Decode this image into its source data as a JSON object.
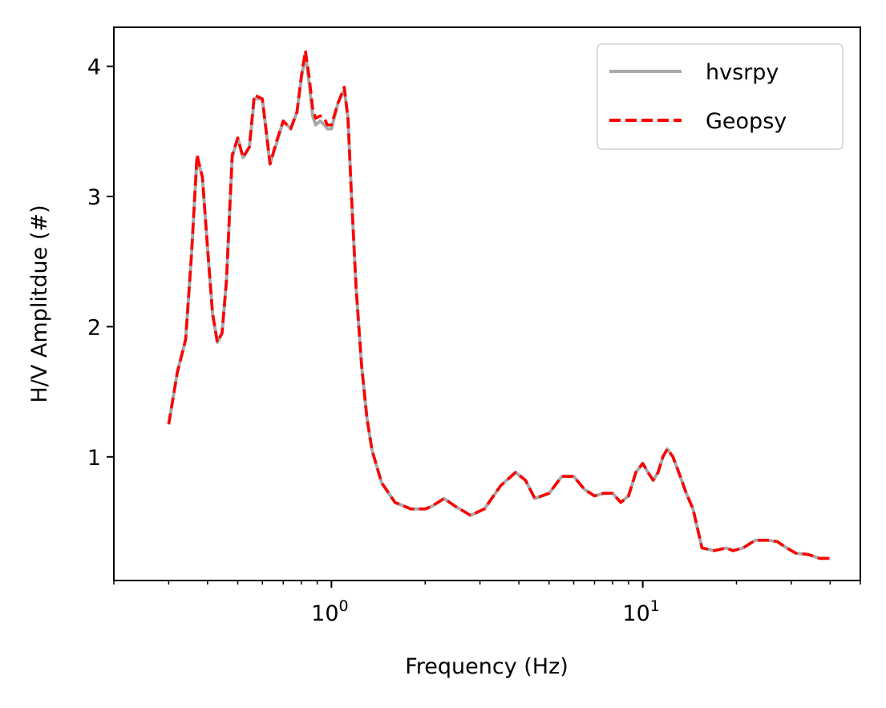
{
  "chart_data": {
    "type": "line",
    "xlabel": "Frequency (Hz)",
    "ylabel": "H/V Amplitdue (#)",
    "xscale": "log",
    "xlim": [
      0.2,
      50
    ],
    "ylim": [
      0.05,
      4.3
    ],
    "x_ticks_major": [
      {
        "value": 1,
        "base": "10",
        "exp": "0"
      },
      {
        "value": 10,
        "base": "10",
        "exp": "1"
      }
    ],
    "y_ticks": [
      {
        "value": 1,
        "label": "1"
      },
      {
        "value": 2,
        "label": "2"
      },
      {
        "value": 3,
        "label": "3"
      },
      {
        "value": 4,
        "label": "4"
      }
    ],
    "grid": false,
    "legend": "top-right",
    "series": [
      {
        "name": "hvsrpy",
        "color": "#a9a9a9",
        "style": "solid",
        "x": [
          0.3,
          0.32,
          0.34,
          0.355,
          0.37,
          0.385,
          0.4,
          0.415,
          0.43,
          0.445,
          0.46,
          0.48,
          0.5,
          0.52,
          0.545,
          0.565,
          0.6,
          0.635,
          0.665,
          0.7,
          0.74,
          0.775,
          0.8,
          0.825,
          0.85,
          0.87,
          0.89,
          0.92,
          0.95,
          0.97,
          1.0,
          1.05,
          1.1,
          1.13,
          1.16,
          1.2,
          1.25,
          1.3,
          1.35,
          1.45,
          1.6,
          1.8,
          2.0,
          2.1,
          2.3,
          2.5,
          2.8,
          3.1,
          3.5,
          3.9,
          4.2,
          4.5,
          5.0,
          5.5,
          6.0,
          6.5,
          7.0,
          7.5,
          8.0,
          8.5,
          9.0,
          9.5,
          10.0,
          10.4,
          10.8,
          11.2,
          11.6,
          12.0,
          12.5,
          13.2,
          13.8,
          14.5,
          15.5,
          17.0,
          18.5,
          19.5,
          21.0,
          23.0,
          25.0,
          27.0,
          29.0,
          31.0,
          34.0,
          37.0,
          40.0
        ],
        "values": [
          1.25,
          1.65,
          1.9,
          2.55,
          3.3,
          3.15,
          2.6,
          2.1,
          1.88,
          1.95,
          2.35,
          3.3,
          3.45,
          3.3,
          3.38,
          3.75,
          3.75,
          3.25,
          3.4,
          3.58,
          3.52,
          3.65,
          3.9,
          4.1,
          3.85,
          3.62,
          3.55,
          3.58,
          3.55,
          3.52,
          3.52,
          3.72,
          3.82,
          3.6,
          3.0,
          2.3,
          1.7,
          1.3,
          1.05,
          0.8,
          0.65,
          0.6,
          0.6,
          0.62,
          0.68,
          0.62,
          0.55,
          0.6,
          0.78,
          0.88,
          0.82,
          0.68,
          0.72,
          0.85,
          0.85,
          0.75,
          0.7,
          0.72,
          0.72,
          0.65,
          0.7,
          0.88,
          0.95,
          0.88,
          0.82,
          0.88,
          1.0,
          1.06,
          1.0,
          0.85,
          0.72,
          0.6,
          0.3,
          0.28,
          0.3,
          0.28,
          0.3,
          0.36,
          0.36,
          0.35,
          0.3,
          0.26,
          0.25,
          0.22,
          0.22
        ]
      },
      {
        "name": "Geopsy",
        "color": "#ff0000",
        "style": "dashed",
        "x": [
          0.3,
          0.32,
          0.34,
          0.355,
          0.37,
          0.385,
          0.4,
          0.415,
          0.43,
          0.445,
          0.46,
          0.48,
          0.5,
          0.52,
          0.545,
          0.565,
          0.6,
          0.635,
          0.665,
          0.7,
          0.74,
          0.775,
          0.8,
          0.825,
          0.85,
          0.87,
          0.89,
          0.92,
          0.95,
          0.97,
          1.0,
          1.05,
          1.1,
          1.13,
          1.16,
          1.2,
          1.25,
          1.3,
          1.35,
          1.45,
          1.6,
          1.8,
          2.0,
          2.1,
          2.3,
          2.5,
          2.8,
          3.1,
          3.5,
          3.9,
          4.2,
          4.5,
          5.0,
          5.5,
          6.0,
          6.5,
          7.0,
          7.5,
          8.0,
          8.5,
          9.0,
          9.5,
          10.0,
          10.4,
          10.8,
          11.2,
          11.6,
          12.0,
          12.5,
          13.2,
          13.8,
          14.5,
          15.5,
          17.0,
          18.5,
          19.5,
          21.0,
          23.0,
          25.0,
          27.0,
          29.0,
          31.0,
          34.0,
          37.0,
          40.0
        ],
        "values": [
          1.25,
          1.65,
          1.9,
          2.55,
          3.32,
          3.15,
          2.6,
          2.1,
          1.88,
          1.95,
          2.35,
          3.32,
          3.45,
          3.3,
          3.38,
          3.78,
          3.75,
          3.25,
          3.42,
          3.58,
          3.52,
          3.65,
          3.92,
          4.12,
          3.9,
          3.68,
          3.6,
          3.62,
          3.6,
          3.55,
          3.55,
          3.72,
          3.84,
          3.6,
          3.0,
          2.3,
          1.7,
          1.3,
          1.05,
          0.8,
          0.65,
          0.6,
          0.6,
          0.62,
          0.68,
          0.62,
          0.55,
          0.6,
          0.78,
          0.88,
          0.82,
          0.68,
          0.72,
          0.85,
          0.85,
          0.75,
          0.7,
          0.72,
          0.72,
          0.65,
          0.7,
          0.88,
          0.95,
          0.88,
          0.82,
          0.88,
          1.0,
          1.06,
          1.0,
          0.85,
          0.72,
          0.6,
          0.3,
          0.28,
          0.3,
          0.28,
          0.3,
          0.36,
          0.36,
          0.35,
          0.3,
          0.26,
          0.25,
          0.22,
          0.22
        ]
      }
    ]
  }
}
